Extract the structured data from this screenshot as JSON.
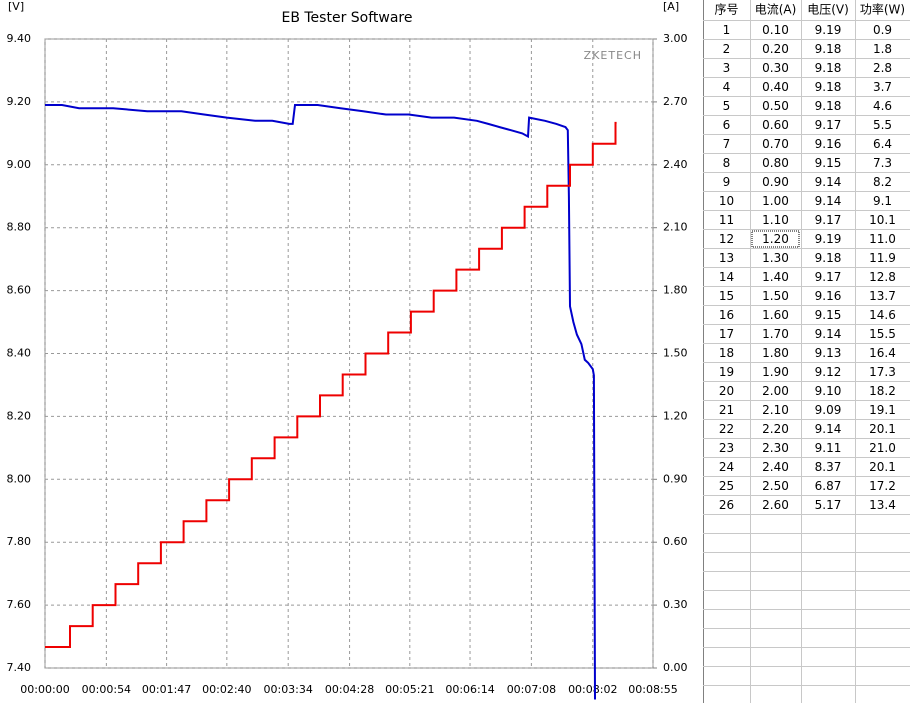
{
  "chart_data": {
    "type": "line",
    "title": "EB Tester Software",
    "y_label": "[V]",
    "y2_label": "[A]",
    "watermark": "ZKETECH",
    "xlim": [
      0,
      535
    ],
    "xticks": [
      {
        "value": 0,
        "label": "00:00:00"
      },
      {
        "value": 54,
        "label": "00:00:54"
      },
      {
        "value": 107,
        "label": "00:01:47"
      },
      {
        "value": 160,
        "label": "00:02:40"
      },
      {
        "value": 214,
        "label": "00:03:34"
      },
      {
        "value": 268,
        "label": "00:04:28"
      },
      {
        "value": 321,
        "label": "00:05:21"
      },
      {
        "value": 374,
        "label": "00:06:14"
      },
      {
        "value": 428,
        "label": "00:07:08"
      },
      {
        "value": 482,
        "label": "00:08:02"
      },
      {
        "value": 535,
        "label": "00:08:55"
      }
    ],
    "ylim": [
      7.4,
      9.4
    ],
    "yticks": [
      {
        "value": 7.4,
        "label": "7.40"
      },
      {
        "value": 7.6,
        "label": "7.60"
      },
      {
        "value": 7.8,
        "label": "7.80"
      },
      {
        "value": 8.0,
        "label": "8.00"
      },
      {
        "value": 8.2,
        "label": "8.20"
      },
      {
        "value": 8.4,
        "label": "8.40"
      },
      {
        "value": 8.6,
        "label": "8.60"
      },
      {
        "value": 8.8,
        "label": "8.80"
      },
      {
        "value": 9.0,
        "label": "9.00"
      },
      {
        "value": 9.2,
        "label": "9.20"
      },
      {
        "value": 9.4,
        "label": "9.40"
      }
    ],
    "y2lim": [
      0,
      3
    ],
    "y2ticks": [
      {
        "value": 0,
        "label": "0.00"
      },
      {
        "value": 0.3,
        "label": "0.30"
      },
      {
        "value": 0.6,
        "label": "0.60"
      },
      {
        "value": 0.9,
        "label": "0.90"
      },
      {
        "value": 1.2,
        "label": "1.20"
      },
      {
        "value": 1.5,
        "label": "1.50"
      },
      {
        "value": 1.8,
        "label": "1.80"
      },
      {
        "value": 2.1,
        "label": "2.10"
      },
      {
        "value": 2.4,
        "label": "2.40"
      },
      {
        "value": 2.7,
        "label": "2.70"
      },
      {
        "value": 3,
        "label": "3.00"
      }
    ],
    "grid": true,
    "series": [
      {
        "color": "#0000cc",
        "axis": "y",
        "x": [
          0,
          15,
          30,
          60,
          90,
          120,
          140,
          160,
          185,
          200,
          215,
          218,
          220,
          240,
          260,
          280,
          300,
          320,
          340,
          360,
          380,
          390,
          400,
          410,
          420,
          425,
          426,
          440,
          450,
          458,
          460,
          461,
          462,
          465,
          468,
          472,
          475,
          478,
          482,
          483,
          484
        ],
        "values": [
          9.19,
          9.19,
          9.18,
          9.18,
          9.17,
          9.17,
          9.16,
          9.15,
          9.14,
          9.14,
          9.13,
          9.13,
          9.19,
          9.19,
          9.18,
          9.17,
          9.16,
          9.16,
          9.15,
          9.15,
          9.14,
          9.13,
          9.12,
          9.11,
          9.1,
          9.09,
          9.15,
          9.14,
          9.13,
          9.12,
          9.11,
          8.9,
          8.55,
          8.5,
          8.46,
          8.43,
          8.38,
          8.37,
          8.35,
          8.33,
          7.3
        ]
      },
      {
        "color": "#ee0000",
        "axis": "y2",
        "x": [
          0,
          22,
          22,
          42,
          42,
          62,
          62,
          82,
          82,
          102,
          102,
          122,
          122,
          142,
          142,
          162,
          162,
          182,
          182,
          202,
          202,
          222,
          222,
          242,
          242,
          262,
          262,
          282,
          282,
          302,
          302,
          322,
          322,
          342,
          342,
          362,
          362,
          382,
          382,
          402,
          402,
          422,
          422,
          442,
          442,
          462,
          462,
          482,
          482,
          502,
          502,
          503
        ],
        "values": [
          0.1,
          0.1,
          0.2,
          0.2,
          0.3,
          0.3,
          0.4,
          0.4,
          0.5,
          0.5,
          0.6,
          0.6,
          0.7,
          0.7,
          0.8,
          0.8,
          0.9,
          0.9,
          1.0,
          1.0,
          1.1,
          1.1,
          1.2,
          1.2,
          1.3,
          1.3,
          1.4,
          1.4,
          1.5,
          1.5,
          1.6,
          1.6,
          1.7,
          1.7,
          1.8,
          1.8,
          1.9,
          1.9,
          2.0,
          2.0,
          2.1,
          2.1,
          2.2,
          2.2,
          2.3,
          2.3,
          2.4,
          2.4,
          2.5,
          2.5,
          2.6,
          2.6
        ]
      }
    ]
  },
  "table": {
    "header": [
      "序号",
      "电流(A)",
      "电压(V)",
      "功率(W)"
    ],
    "rows": [
      [
        "1",
        "0.10",
        "9.19",
        "0.9"
      ],
      [
        "2",
        "0.20",
        "9.18",
        "1.8"
      ],
      [
        "3",
        "0.30",
        "9.18",
        "2.8"
      ],
      [
        "4",
        "0.40",
        "9.18",
        "3.7"
      ],
      [
        "5",
        "0.50",
        "9.18",
        "4.6"
      ],
      [
        "6",
        "0.60",
        "9.17",
        "5.5"
      ],
      [
        "7",
        "0.70",
        "9.16",
        "6.4"
      ],
      [
        "8",
        "0.80",
        "9.15",
        "7.3"
      ],
      [
        "9",
        "0.90",
        "9.14",
        "8.2"
      ],
      [
        "10",
        "1.00",
        "9.14",
        "9.1"
      ],
      [
        "11",
        "1.10",
        "9.17",
        "10.1"
      ],
      [
        "12",
        "1.20",
        "9.19",
        "11.0"
      ],
      [
        "13",
        "1.30",
        "9.18",
        "11.9"
      ],
      [
        "14",
        "1.40",
        "9.17",
        "12.8"
      ],
      [
        "15",
        "1.50",
        "9.16",
        "13.7"
      ],
      [
        "16",
        "1.60",
        "9.15",
        "14.6"
      ],
      [
        "17",
        "1.70",
        "9.14",
        "15.5"
      ],
      [
        "18",
        "1.80",
        "9.13",
        "16.4"
      ],
      [
        "19",
        "1.90",
        "9.12",
        "17.3"
      ],
      [
        "20",
        "2.00",
        "9.10",
        "18.2"
      ],
      [
        "21",
        "2.10",
        "9.09",
        "19.1"
      ],
      [
        "22",
        "2.20",
        "9.14",
        "20.1"
      ],
      [
        "23",
        "2.30",
        "9.11",
        "21.0"
      ],
      [
        "24",
        "2.40",
        "8.37",
        "20.1"
      ],
      [
        "25",
        "2.50",
        "6.87",
        "17.2"
      ],
      [
        "26",
        "2.60",
        "5.17",
        "13.4"
      ]
    ]
  }
}
